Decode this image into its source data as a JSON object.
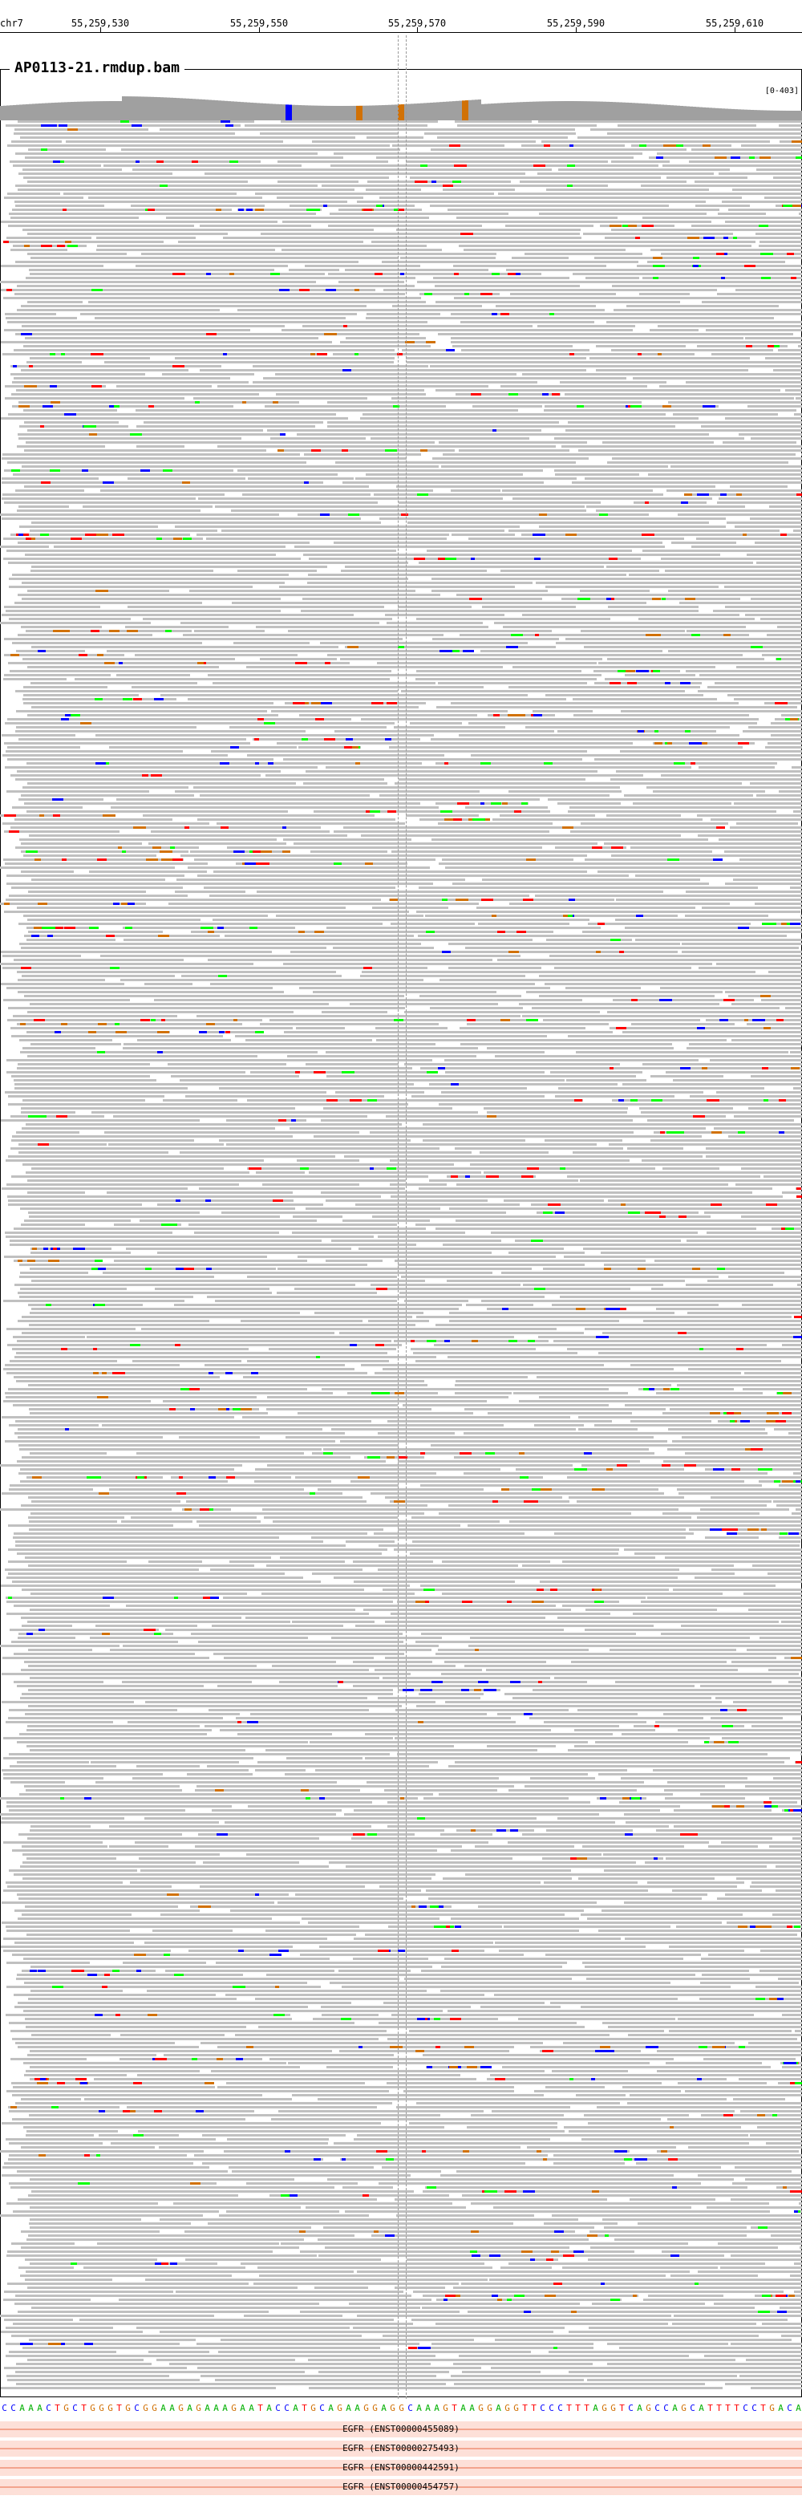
{
  "ruler": {
    "chromosome": "chr7",
    "positions": [
      "55,259,530",
      "55,259,550",
      "55,259,570",
      "55,259,590",
      "55,259,610"
    ]
  },
  "track": {
    "title": "AP0113-21.rmdup.bam",
    "range": "[0-403]"
  },
  "reference_sequence": "CCAAACTGCTGGGTGCGGAAGAGAAAGAATACCATGCAGAAGGAGGCAAAGTAAGGAGGTTCCCTTTAGGTCAGCCAGCATTTTCCTGACACCAGGGACCAG",
  "base_colors": {
    "A": "#00b000",
    "C": "#0000ff",
    "G": "#d17105",
    "T": "#ff0000"
  },
  "read_colors": {
    "read": "#c0c0c0",
    "mismatch_A": "#00ff00",
    "mismatch_C": "#0000ff",
    "mismatch_G": "#d17105",
    "mismatch_T": "#ff0000",
    "coverage": "#a0a0a0"
  },
  "transcripts": [
    "EGFR (ENST00000455089)",
    "EGFR (ENST00000275493)",
    "EGFR (ENST00000442591)",
    "EGFR (ENST00000454757)"
  ]
}
